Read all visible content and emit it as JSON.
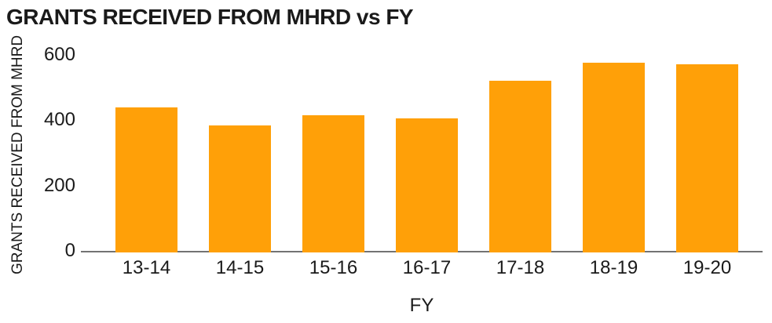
{
  "chart_data": {
    "type": "bar",
    "title": "GRANTS RECEIVED FROM MHRD vs FY",
    "xlabel": "FY",
    "ylabel": "GRANTS RECEIVED FROM MHRD",
    "categories": [
      "13-14",
      "14-15",
      "15-16",
      "16-17",
      "17-18",
      "18-19",
      "19-20"
    ],
    "values": [
      445,
      390,
      420,
      410,
      525,
      580,
      575
    ],
    "ylim": [
      0,
      600
    ],
    "yticks": [
      0,
      200,
      400,
      600
    ],
    "grid": false,
    "legend": "none",
    "bar_color": "#FFA008",
    "axis_line_color": "#737373",
    "text_color": "#1a1a1a"
  }
}
